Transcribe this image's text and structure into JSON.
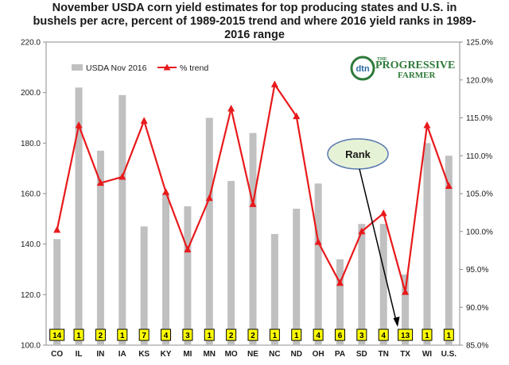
{
  "title_lines": [
    "November USDA corn yield estimates for top producing states and U.S. in",
    "bushels per acre, percent of 1989-2015 trend and where 2016 yield ranks in 1989-",
    "2016 range"
  ],
  "logo": {
    "badge": "dtn",
    "line1": "PROGRESSIVE",
    "line2": "FARMER",
    "prefix": "THE"
  },
  "callout": "Rank",
  "colors": {
    "bar": "#c0c0c0",
    "line": "#e8191b",
    "rank_fill": "#ffff00",
    "callout_fill": "#e6f2d6",
    "callout_stroke": "#5a7ab0"
  },
  "chart_data": {
    "type": "bar",
    "categories": [
      "CO",
      "IL",
      "IN",
      "IA",
      "KS",
      "KY",
      "MI",
      "MN",
      "MO",
      "NE",
      "NC",
      "ND",
      "OH",
      "PA",
      "SD",
      "TN",
      "TX",
      "WI",
      "U.S."
    ],
    "series": [
      {
        "name": "USDA Nov 2016",
        "type": "bar",
        "axis": "left",
        "values": [
          142,
          202,
          177,
          199,
          147,
          160,
          155,
          190,
          165,
          184,
          144,
          154,
          164,
          134,
          148,
          148,
          128,
          180,
          175
        ]
      },
      {
        "name": "% trend",
        "type": "line",
        "axis": "right",
        "marker": "triangle",
        "values": [
          100.2,
          114.0,
          106.4,
          107.2,
          114.6,
          105.2,
          97.6,
          104.4,
          116.2,
          103.6,
          119.4,
          115.2,
          98.6,
          93.2,
          100.0,
          102.4,
          92.0,
          114.0,
          106.0
        ]
      }
    ],
    "ranks": [
      "14",
      "1",
      "2",
      "1",
      "7",
      "4",
      "3",
      "1",
      "2",
      "2",
      "1",
      "1",
      "4",
      "6",
      "3",
      "4",
      "13",
      "1",
      "1"
    ],
    "left_axis": {
      "min": 100,
      "max": 220,
      "ticks": [
        "100.0",
        "120.0",
        "140.0",
        "160.0",
        "180.0",
        "200.0",
        "220.0"
      ]
    },
    "right_axis": {
      "min": 85,
      "max": 125,
      "ticks": [
        "85.0%",
        "90.0%",
        "95.0%",
        "100.0%",
        "105.0%",
        "110.0%",
        "115.0%",
        "120.0%",
        "125.0%"
      ]
    },
    "legend": [
      "USDA Nov 2016",
      "% trend"
    ]
  }
}
